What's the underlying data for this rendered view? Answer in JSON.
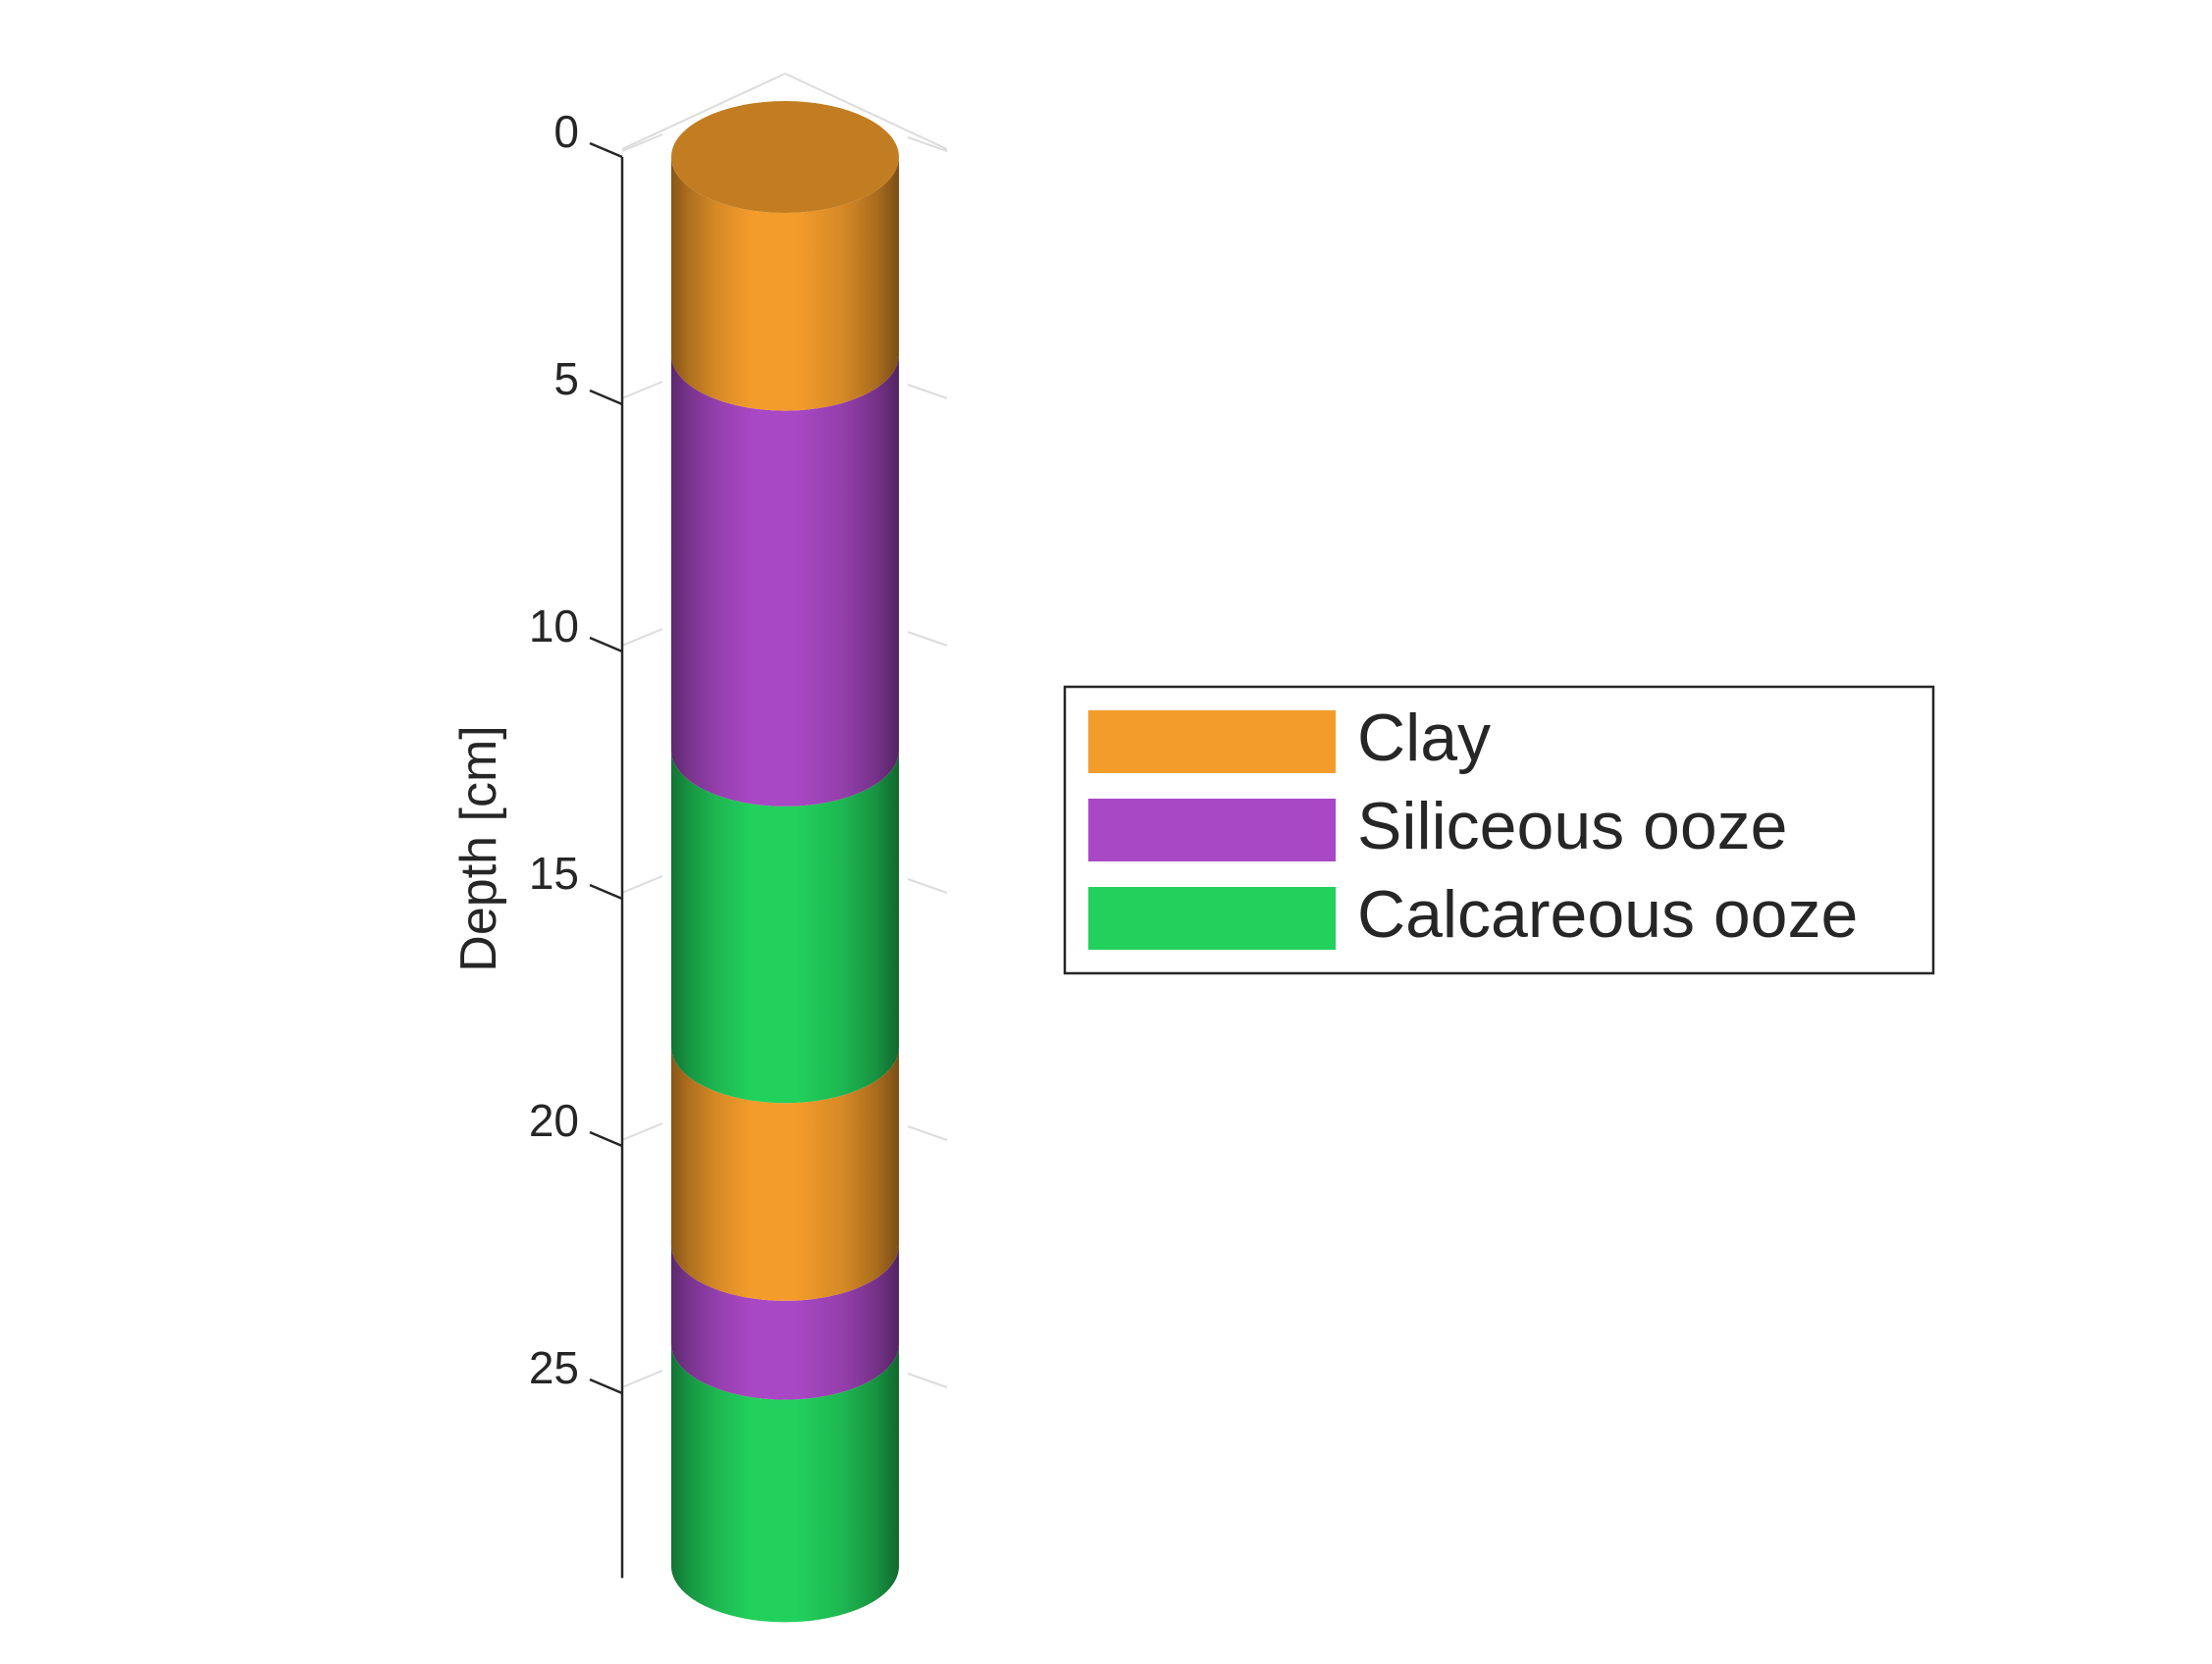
{
  "chart_data": {
    "type": "stacked-column-3d",
    "title": "",
    "ylabel": "Depth [cm]",
    "xlabel": "",
    "ylim": [
      0,
      28.5
    ],
    "y_direction": "reversed",
    "y_ticks": [
      0,
      5,
      10,
      15,
      20,
      25
    ],
    "grid": true,
    "legend_position": "right",
    "layers": [
      {
        "lithology": "Clay",
        "top": 0,
        "bottom": 4
      },
      {
        "lithology": "Siliceous ooze",
        "top": 4,
        "bottom": 12
      },
      {
        "lithology": "Calcareous ooze",
        "top": 12,
        "bottom": 18
      },
      {
        "lithology": "Clay",
        "top": 18,
        "bottom": 22
      },
      {
        "lithology": "Siliceous ooze",
        "top": 22,
        "bottom": 24
      },
      {
        "lithology": "Calcareous ooze",
        "top": 24,
        "bottom": 28.5
      }
    ],
    "legend": [
      {
        "name": "Clay",
        "color": "#F39C2B"
      },
      {
        "name": "Siliceous ooze",
        "color": "#A848C4"
      },
      {
        "name": "Calcareous ooze",
        "color": "#22D05C"
      }
    ]
  }
}
